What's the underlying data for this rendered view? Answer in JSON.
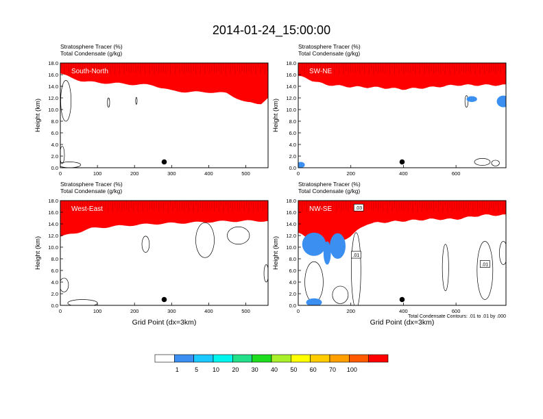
{
  "figure": {
    "title": "2014-01-24_15:00:00",
    "footnote": "Total Condensate Contours: .01 to .01 by .000"
  },
  "colorbar": {
    "tick_labels": [
      "1",
      "5",
      "10",
      "20",
      "30",
      "40",
      "50",
      "60",
      "70",
      "100"
    ],
    "colors": [
      "#ffffff",
      "#3a8ff0",
      "#1ac9ff",
      "#00f5ee",
      "#22e08a",
      "#1edc1e",
      "#aaf02a",
      "#ffff00",
      "#ffcc00",
      "#ffa000",
      "#ff5a00",
      "#ff0000"
    ]
  },
  "chart_data": [
    {
      "type": "heatmap",
      "title": "South-North",
      "header_lines": [
        "Stratosphere Tracer   (%)",
        "Total Condensate   (g/kg)"
      ],
      "ylabel": "Height (km)",
      "xlabel": "",
      "xlim": [
        0,
        560
      ],
      "ylim": [
        0,
        18
      ],
      "xticks": [
        0,
        100,
        200,
        300,
        400,
        500
      ],
      "yticks": [
        "0.0",
        "2.0",
        "4.0",
        "6.0",
        "8.0",
        "10.0",
        "12.0",
        "14.0",
        "16.0",
        "18.0"
      ],
      "tracer_base_km": [
        [
          0,
          16.2
        ],
        [
          30,
          15.4
        ],
        [
          60,
          14.9
        ],
        [
          100,
          14.6
        ],
        [
          150,
          14.5
        ],
        [
          200,
          14.3
        ],
        [
          250,
          14.2
        ],
        [
          300,
          13.2
        ],
        [
          350,
          13.0
        ],
        [
          400,
          13.0
        ],
        [
          450,
          12.8
        ],
        [
          500,
          11.2
        ],
        [
          540,
          11.0
        ],
        [
          560,
          12.0
        ]
      ],
      "marker": [
        280,
        1.0
      ],
      "contour_labels": []
    },
    {
      "type": "heatmap",
      "title": "SW-NE",
      "header_lines": [
        "Stratosphere Tracer   (%)",
        "Total Condensate   (g/kg)"
      ],
      "ylabel": "Height (km)",
      "xlabel": "",
      "xlim": [
        0,
        790
      ],
      "ylim": [
        0,
        18
      ],
      "xticks": [
        0,
        200,
        400,
        600
      ],
      "yticks": [
        "0.0",
        "2.0",
        "4.0",
        "6.0",
        "8.0",
        "10.0",
        "12.0",
        "14.0",
        "16.0",
        "18.0"
      ],
      "tracer_base_km": [
        [
          0,
          15.8
        ],
        [
          100,
          14.3
        ],
        [
          200,
          13.9
        ],
        [
          300,
          13.8
        ],
        [
          400,
          13.5
        ],
        [
          500,
          13.8
        ],
        [
          600,
          14.2
        ],
        [
          700,
          14.2
        ],
        [
          790,
          14.2
        ]
      ],
      "marker": [
        395,
        1.0
      ],
      "contour_labels": []
    },
    {
      "type": "heatmap",
      "title": "West-East",
      "header_lines": [
        "Stratosphere Tracer   (%)",
        "Total Condensate   (g/kg)"
      ],
      "ylabel": "Height (km)",
      "xlabel": "Grid Point (dx=3km)",
      "xlim": [
        0,
        560
      ],
      "ylim": [
        0,
        18
      ],
      "xticks": [
        0,
        100,
        200,
        300,
        400,
        500
      ],
      "yticks": [
        "0.0",
        "2.0",
        "4.0",
        "6.0",
        "8.0",
        "10.0",
        "12.0",
        "14.0",
        "16.0",
        "18.0"
      ],
      "tracer_base_km": [
        [
          0,
          11.8
        ],
        [
          40,
          12.4
        ],
        [
          80,
          13.2
        ],
        [
          150,
          13.6
        ],
        [
          250,
          14.0
        ],
        [
          350,
          14.2
        ],
        [
          420,
          14.4
        ],
        [
          500,
          14.5
        ],
        [
          560,
          14.5
        ]
      ],
      "marker": [
        280,
        1.0
      ],
      "contour_labels": []
    },
    {
      "type": "heatmap",
      "title": "NW-SE",
      "header_lines": [
        "Stratosphere Tracer   (%)",
        "Total Condensate   (g/kg)"
      ],
      "ylabel": "Height (km)",
      "xlabel": "Grid Point (dx=3km)",
      "xlim": [
        0,
        790
      ],
      "ylim": [
        0,
        18
      ],
      "xticks": [
        0,
        200,
        400,
        600
      ],
      "yticks": [
        "0.0",
        "2.0",
        "4.0",
        "6.0",
        "8.0",
        "10.0",
        "12.0",
        "14.0",
        "16.0",
        "18.0"
      ],
      "tracer_base_km": [
        [
          0,
          12.5
        ],
        [
          50,
          11.0
        ],
        [
          100,
          10.0
        ],
        [
          150,
          10.5
        ],
        [
          200,
          12.0
        ],
        [
          260,
          14.0
        ],
        [
          300,
          14.2
        ],
        [
          400,
          14.5
        ],
        [
          500,
          14.8
        ],
        [
          600,
          14.8
        ],
        [
          700,
          15.5
        ],
        [
          790,
          15.5
        ]
      ],
      "marker": [
        395,
        1.0
      ],
      "contour_labels": [
        ".01",
        ".01",
        ".03"
      ]
    }
  ]
}
